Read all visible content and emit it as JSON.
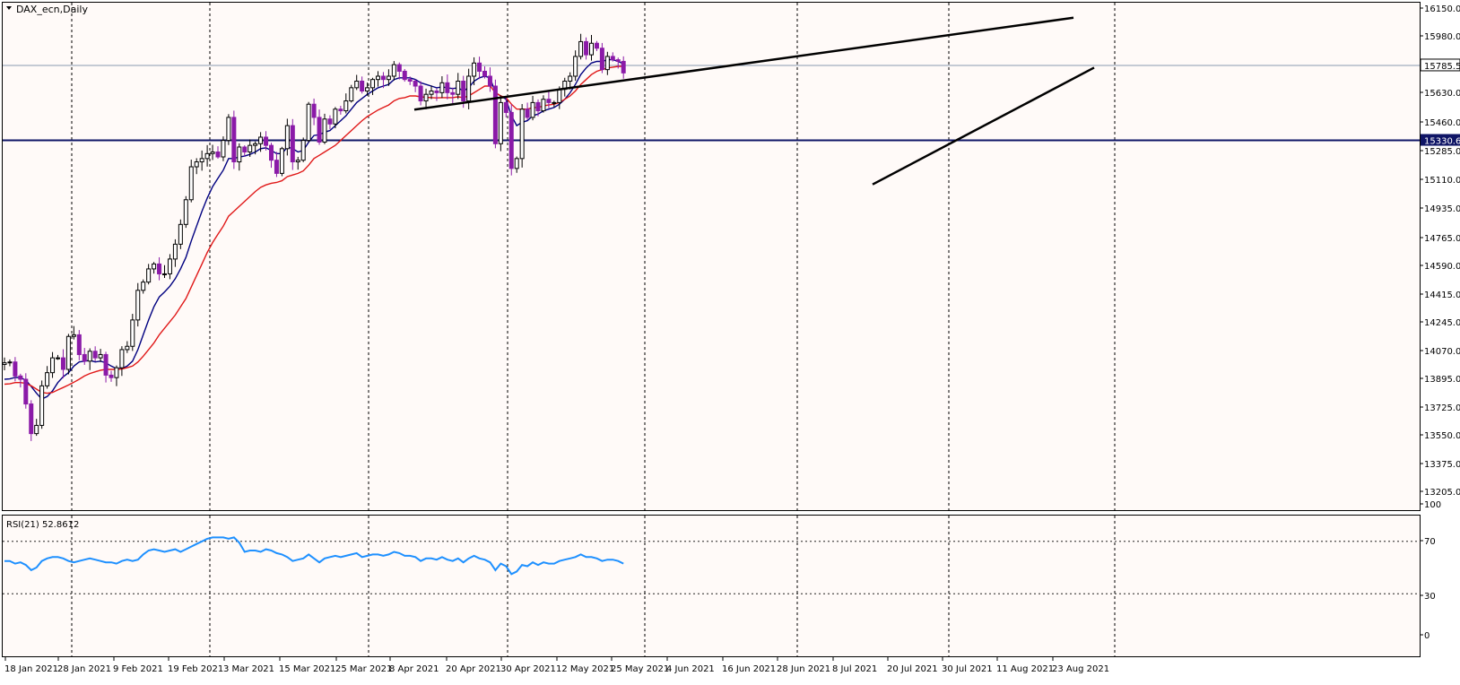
{
  "chart_data": {
    "type": "candlestick",
    "symbol_title": "DAX_ecn,Daily",
    "x_tick_labels": [
      "18 Jan 2021",
      "28 Jan 2021",
      "9 Feb 2021",
      "19 Feb 2021",
      "3 Mar 2021",
      "15 Mar 2021",
      "25 Mar 2021",
      "8 Apr 2021",
      "20 Apr 2021",
      "30 Apr 2021",
      "12 May 2021",
      "25 May 2021",
      "4 Jun 2021",
      "16 Jun 2021",
      "28 Jun 2021",
      "8 Jul 2021",
      "20 Jul 2021",
      "30 Jul 2021",
      "11 Aug 2021",
      "23 Aug 2021"
    ],
    "y_tick_labels": [
      "16150.0",
      "15980.0",
      "15630.0",
      "15460.0",
      "15285.0",
      "15110.0",
      "14935.0",
      "14765.0",
      "14590.0",
      "14415.0",
      "14245.0",
      "14070.0",
      "13895.0",
      "13725.0",
      "13550.0",
      "13375.0",
      "13205.0"
    ],
    "ylim": [
      13205,
      16150
    ],
    "current_price": {
      "label": "15785.5",
      "value": 15785.5
    },
    "horizontal_level": {
      "label": "15330.6",
      "value": 15330.6,
      "color": "#0f1566"
    },
    "trendlines": [
      {
        "name": "upper",
        "from": [
          462,
          15517
        ],
        "to": [
          1197,
          16075
        ]
      },
      {
        "name": "lower",
        "from": [
          973,
          15063
        ],
        "to": [
          1220,
          15772
        ]
      }
    ],
    "closes": [
      13980,
      13985,
      13900,
      13880,
      13730,
      13550,
      13600,
      13840,
      13920,
      14010,
      14010,
      13940,
      14140,
      14150,
      14030,
      13990,
      14050,
      14010,
      14030,
      13905,
      13890,
      13950,
      14060,
      14080,
      14240,
      14420,
      14470,
      14550,
      14580,
      14520,
      14520,
      14610,
      14700,
      14820,
      14970,
      15170,
      15200,
      15220,
      15250,
      15260,
      15230,
      15330,
      15470,
      15200,
      15290,
      15260,
      15300,
      15310,
      15350,
      15300,
      15210,
      15130,
      15280,
      15420,
      15200,
      15210,
      15330,
      15550,
      15470,
      15320,
      15460,
      15430,
      15520,
      15510,
      15570,
      15650,
      15690,
      15630,
      15650,
      15700,
      15720,
      15700,
      15720,
      15790,
      15750,
      15700,
      15690,
      15660,
      15570,
      15610,
      15630,
      15620,
      15680,
      15620,
      15610,
      15690,
      15570,
      15720,
      15800,
      15750,
      15720,
      15660,
      15310,
      15560,
      15500,
      15160,
      15220,
      15520,
      15470,
      15560,
      15510,
      15580,
      15560,
      15560,
      15640,
      15690,
      15720,
      15840,
      15930,
      15850,
      15920,
      15890,
      15760,
      15840,
      15820,
      15810,
      15740
    ],
    "series": [
      {
        "name": "",
        "color": "#000080",
        "values": [
          13880,
          13882,
          13891,
          13890,
          13875,
          13836,
          13795,
          13760,
          13775,
          13810,
          13860,
          13895,
          13920,
          13960,
          13985,
          13990,
          13995,
          13985,
          13990,
          13980,
          13960,
          13945,
          13945,
          13960,
          13990,
          14060,
          14150,
          14240,
          14320,
          14380,
          14410,
          14445,
          14490,
          14550,
          14620,
          14720,
          14810,
          14900,
          14980,
          15050,
          15100,
          15150,
          15220,
          15220,
          15230,
          15235,
          15245,
          15260,
          15280,
          15285,
          15270,
          15250,
          15250,
          15290,
          15280,
          15260,
          15270,
          15320,
          15360,
          15365,
          15380,
          15390,
          15420,
          15450,
          15480,
          15520,
          15560,
          15585,
          15610,
          15630,
          15650,
          15660,
          15670,
          15700,
          15710,
          15710,
          15710,
          15700,
          15680,
          15670,
          15660,
          15650,
          15655,
          15650,
          15645,
          15650,
          15630,
          15650,
          15690,
          15710,
          15720,
          15710,
          15620,
          15600,
          15580,
          15480,
          15420,
          15440,
          15450,
          15480,
          15490,
          15510,
          15520,
          15530,
          15550,
          15580,
          15620,
          15670,
          15730,
          15770,
          15800,
          15810,
          15810,
          15820,
          15820,
          15810,
          15795
        ]
      },
      {
        "name": "",
        "color": "#e01818",
        "values": [
          13850,
          13852,
          13860,
          13860,
          13855,
          13840,
          13820,
          13800,
          13795,
          13800,
          13815,
          13830,
          13845,
          13862,
          13880,
          13900,
          13915,
          13925,
          13935,
          13940,
          13940,
          13940,
          13942,
          13950,
          13960,
          13985,
          14020,
          14060,
          14100,
          14150,
          14190,
          14230,
          14270,
          14320,
          14370,
          14440,
          14510,
          14580,
          14650,
          14710,
          14760,
          14810,
          14870,
          14900,
          14930,
          14960,
          14990,
          15020,
          15045,
          15060,
          15070,
          15075,
          15085,
          15110,
          15120,
          15130,
          15145,
          15180,
          15220,
          15240,
          15260,
          15280,
          15300,
          15330,
          15360,
          15390,
          15420,
          15450,
          15475,
          15495,
          15515,
          15530,
          15545,
          15570,
          15585,
          15590,
          15600,
          15600,
          15595,
          15592,
          15590,
          15588,
          15590,
          15590,
          15590,
          15595,
          15590,
          15600,
          15620,
          15640,
          15660,
          15660,
          15620,
          15600,
          15590,
          15550,
          15520,
          15520,
          15520,
          15530,
          15530,
          15540,
          15545,
          15550,
          15560,
          15580,
          15600,
          15630,
          15670,
          15700,
          15730,
          15750,
          15760,
          15770,
          15775,
          15780,
          15780
        ]
      }
    ],
    "rsi": {
      "label": "RSI(21) 52.8612",
      "levels": [
        70,
        30
      ],
      "y_tick_labels": [
        "100",
        "70",
        "30",
        "0"
      ],
      "color": "#1e90ff",
      "values": [
        55,
        55,
        53,
        54,
        52,
        48,
        50,
        55,
        57,
        58,
        58,
        57,
        55,
        54,
        55,
        56,
        57,
        56,
        55,
        54,
        54,
        53,
        55,
        56,
        55,
        56,
        60,
        63,
        64,
        63,
        62,
        63,
        64,
        62,
        64,
        66,
        68,
        70,
        72,
        73,
        73,
        73,
        72,
        73,
        69,
        62,
        63,
        63,
        62,
        64,
        63,
        61,
        60,
        58,
        55,
        56,
        57,
        60,
        57,
        54,
        57,
        58,
        59,
        58,
        59,
        60,
        61,
        58,
        59,
        60,
        60,
        59,
        60,
        62,
        61,
        59,
        59,
        58,
        55,
        57,
        57,
        56,
        58,
        56,
        55,
        57,
        54,
        57,
        59,
        57,
        56,
        54,
        48,
        53,
        51,
        45,
        47,
        52,
        51,
        54,
        52,
        54,
        53,
        53,
        55,
        56,
        57,
        58,
        60,
        58,
        58,
        57,
        55,
        56,
        56,
        55,
        53
      ]
    }
  }
}
